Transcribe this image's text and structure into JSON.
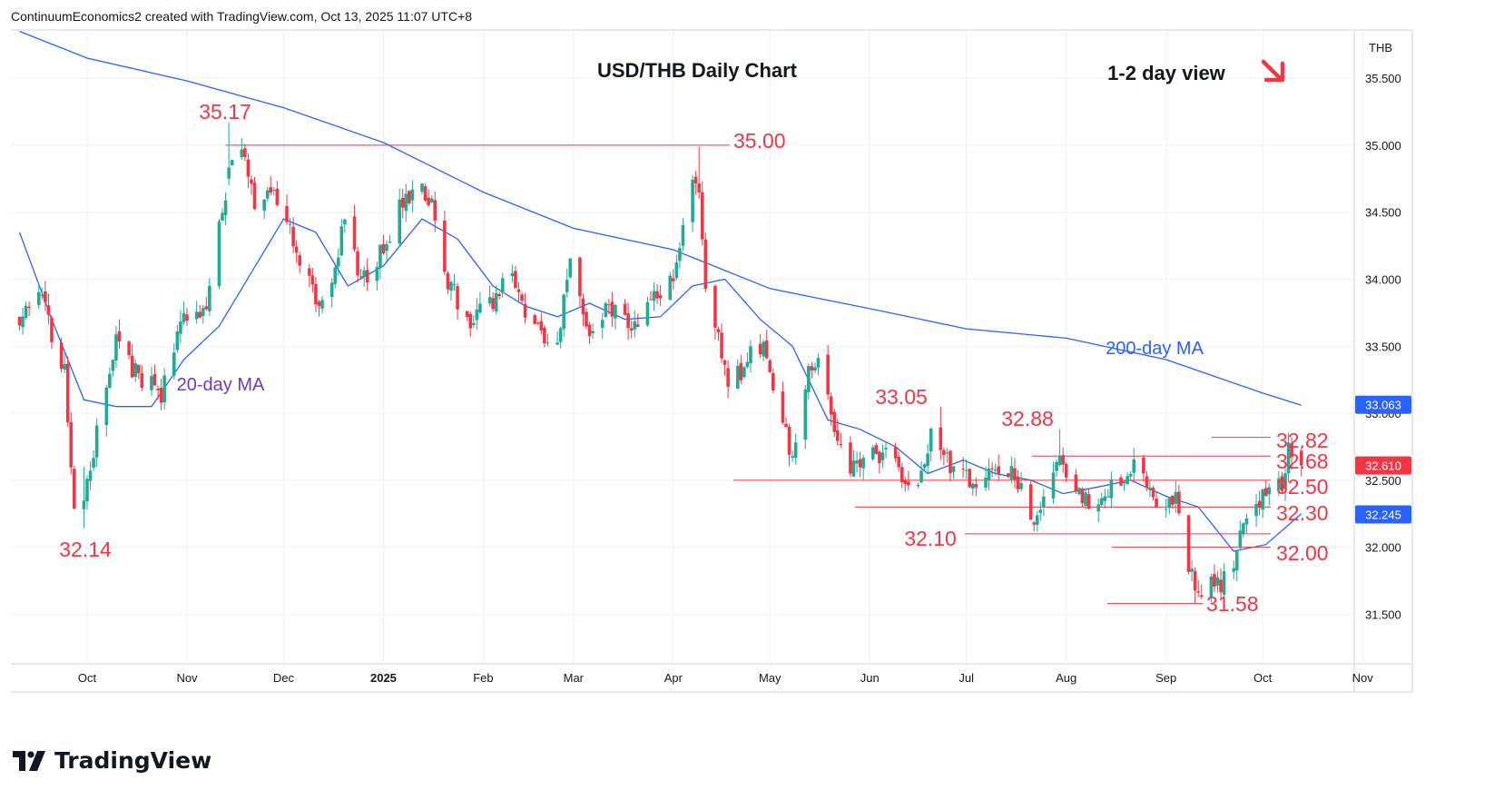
{
  "attribution": "ContinuumEconomics2 created with TradingView.com, Oct 13, 2025 11:07 UTC+8",
  "brand": {
    "name": "TradingView"
  },
  "colors": {
    "up": "#22ab94",
    "down": "#f23645",
    "ma200": "#2962ff",
    "ma20": "#2962ff",
    "level_line": "#f23645",
    "level_text": "#f23645",
    "ma20_label": "#6a3cc8",
    "ma200_label": "#2962ff",
    "axis_text": "#131722",
    "grid": "#eef0f3",
    "border": "#d1d4dc",
    "ma200_badge": "#2962ff",
    "price_badge": "#f23645",
    "ma20_badge": "#2962ff"
  },
  "chart_data": {
    "type": "candlestick",
    "title": "USD/THB Daily Chart",
    "view_label": "1-2 day view",
    "view_icon": "arrow-down-right-icon",
    "currency": "THB",
    "ylim": [
      31.13,
      35.86
    ],
    "y_ticks": [
      "35.500",
      "35.000",
      "34.500",
      "34.000",
      "33.500",
      "33.000",
      "32.500",
      "32.000",
      "31.500"
    ],
    "x_ticks": [
      {
        "label": "Oct",
        "date": "2024-10-01"
      },
      {
        "label": "Nov",
        "date": "2024-11-01"
      },
      {
        "label": "Dec",
        "date": "2024-12-01"
      },
      {
        "label": "2025",
        "date": "2025-01-01",
        "bold": true
      },
      {
        "label": "Feb",
        "date": "2025-02-01"
      },
      {
        "label": "Mar",
        "date": "2025-03-01"
      },
      {
        "label": "Apr",
        "date": "2025-04-01"
      },
      {
        "label": "May",
        "date": "2025-05-01"
      },
      {
        "label": "Jun",
        "date": "2025-06-01"
      },
      {
        "label": "Jul",
        "date": "2025-07-01"
      },
      {
        "label": "Aug",
        "date": "2025-08-01"
      },
      {
        "label": "Sep",
        "date": "2025-09-01"
      },
      {
        "label": "Oct",
        "date": "2025-10-01"
      },
      {
        "label": "Nov",
        "date": "2025-11-01"
      }
    ],
    "anchors": [
      [
        "2024-09-10",
        33.7
      ],
      [
        "2024-09-16",
        33.9
      ],
      [
        "2024-09-24",
        33.3
      ],
      [
        "2024-09-27",
        32.35
      ],
      [
        "2024-09-30",
        32.3
      ],
      [
        "2024-10-04",
        32.85
      ],
      [
        "2024-10-10",
        33.55
      ],
      [
        "2024-10-16",
        33.3
      ],
      [
        "2024-10-21",
        33.2
      ],
      [
        "2024-10-24",
        33.15
      ],
      [
        "2024-10-30",
        33.7
      ],
      [
        "2024-11-04",
        33.8
      ],
      [
        "2024-11-07",
        33.7
      ],
      [
        "2024-11-11",
        34.4
      ],
      [
        "2024-11-15",
        34.9
      ],
      [
        "2024-11-18",
        35.0
      ],
      [
        "2024-11-22",
        34.6
      ],
      [
        "2024-11-26",
        34.7
      ],
      [
        "2024-12-03",
        34.35
      ],
      [
        "2024-12-09",
        34.0
      ],
      [
        "2024-12-12",
        33.8
      ],
      [
        "2024-12-16",
        33.9
      ],
      [
        "2024-12-20",
        34.5
      ],
      [
        "2024-12-24",
        34.1
      ],
      [
        "2024-12-27",
        34.05
      ],
      [
        "2025-01-03",
        34.3
      ],
      [
        "2025-01-07",
        34.6
      ],
      [
        "2025-01-13",
        34.7
      ],
      [
        "2025-01-17",
        34.5
      ],
      [
        "2025-01-21",
        34.0
      ],
      [
        "2025-01-27",
        33.7
      ],
      [
        "2025-02-04",
        33.8
      ],
      [
        "2025-02-10",
        34.1
      ],
      [
        "2025-02-14",
        33.7
      ],
      [
        "2025-02-20",
        33.6
      ],
      [
        "2025-02-24",
        33.5
      ],
      [
        "2025-02-28",
        34.2
      ],
      [
        "2025-03-06",
        33.6
      ],
      [
        "2025-03-12",
        33.8
      ],
      [
        "2025-03-18",
        33.65
      ],
      [
        "2025-03-21",
        33.6
      ],
      [
        "2025-03-26",
        33.9
      ],
      [
        "2025-04-01",
        34.0
      ],
      [
        "2025-04-03",
        34.3
      ],
      [
        "2025-04-07",
        34.8
      ],
      [
        "2025-04-09",
        34.6
      ],
      [
        "2025-04-11",
        34.0
      ],
      [
        "2025-04-15",
        33.6
      ],
      [
        "2025-04-18",
        33.2
      ],
      [
        "2025-04-22",
        33.3
      ],
      [
        "2025-04-25",
        33.5
      ],
      [
        "2025-04-30",
        33.45
      ],
      [
        "2025-05-05",
        32.9
      ],
      [
        "2025-05-08",
        32.7
      ],
      [
        "2025-05-13",
        33.3
      ],
      [
        "2025-05-16",
        33.35
      ],
      [
        "2025-05-20",
        33.0
      ],
      [
        "2025-05-23",
        32.7
      ],
      [
        "2025-05-27",
        32.6
      ],
      [
        "2025-06-03",
        32.7
      ],
      [
        "2025-06-09",
        32.65
      ],
      [
        "2025-06-13",
        32.4
      ],
      [
        "2025-06-18",
        32.6
      ],
      [
        "2025-06-20",
        32.85
      ],
      [
        "2025-06-24",
        32.65
      ],
      [
        "2025-07-01",
        32.5
      ],
      [
        "2025-07-08",
        32.55
      ],
      [
        "2025-07-14",
        32.6
      ],
      [
        "2025-07-17",
        32.5
      ],
      [
        "2025-07-22",
        32.2
      ],
      [
        "2025-07-25",
        32.4
      ],
      [
        "2025-07-30",
        32.7
      ],
      [
        "2025-08-04",
        32.45
      ],
      [
        "2025-08-08",
        32.35
      ],
      [
        "2025-08-13",
        32.4
      ],
      [
        "2025-08-18",
        32.5
      ],
      [
        "2025-08-22",
        32.62
      ],
      [
        "2025-08-26",
        32.45
      ],
      [
        "2025-09-01",
        32.3
      ],
      [
        "2025-09-04",
        32.35
      ],
      [
        "2025-09-08",
        31.85
      ],
      [
        "2025-09-10",
        31.7
      ],
      [
        "2025-09-16",
        31.72
      ],
      [
        "2025-09-19",
        31.75
      ],
      [
        "2025-09-22",
        31.9
      ],
      [
        "2025-09-26",
        32.2
      ],
      [
        "2025-09-29",
        32.3
      ],
      [
        "2025-10-02",
        32.45
      ],
      [
        "2025-10-06",
        32.45
      ],
      [
        "2025-10-08",
        32.55
      ],
      [
        "2025-10-09",
        32.75
      ],
      [
        "2025-10-13",
        32.61
      ]
    ],
    "highlights": [
      {
        "date": "2024-09-30",
        "high": 32.6,
        "low": 32.14
      },
      {
        "date": "2024-11-14",
        "high": 35.17,
        "low": 34.7
      },
      {
        "date": "2025-04-09",
        "high": 34.99,
        "low": 34.6
      },
      {
        "date": "2025-06-23",
        "high": 33.05,
        "low": 32.65
      },
      {
        "date": "2025-07-30",
        "high": 32.88,
        "low": 32.6
      },
      {
        "date": "2025-09-10",
        "high": 31.85,
        "low": 31.58
      },
      {
        "date": "2025-10-10",
        "high": 32.82,
        "low": 32.58
      }
    ],
    "series": [
      {
        "name": "200-day MA",
        "x": [
          "2024-09-10",
          "2024-10-01",
          "2024-11-01",
          "2024-12-01",
          "2025-01-01",
          "2025-02-01",
          "2025-03-01",
          "2025-04-01",
          "2025-05-01",
          "2025-06-01",
          "2025-07-01",
          "2025-08-01",
          "2025-09-01",
          "2025-10-01",
          "2025-10-13"
        ],
        "values": [
          35.85,
          35.65,
          35.48,
          35.28,
          35.02,
          34.65,
          34.38,
          34.22,
          33.93,
          33.78,
          33.63,
          33.56,
          33.4,
          33.15,
          33.06
        ]
      },
      {
        "name": "20-day MA",
        "x": [
          "2024-09-10",
          "2024-09-20",
          "2024-09-30",
          "2024-10-10",
          "2024-10-21",
          "2024-10-31",
          "2024-11-11",
          "2024-11-21",
          "2024-12-01",
          "2024-12-11",
          "2024-12-21",
          "2025-01-01",
          "2025-01-13",
          "2025-01-24",
          "2025-02-04",
          "2025-02-14",
          "2025-02-24",
          "2025-03-06",
          "2025-03-17",
          "2025-03-28",
          "2025-04-07",
          "2025-04-17",
          "2025-04-28",
          "2025-05-08",
          "2025-05-19",
          "2025-05-29",
          "2025-06-09",
          "2025-06-19",
          "2025-06-30",
          "2025-07-10",
          "2025-07-21",
          "2025-07-31",
          "2025-08-11",
          "2025-08-21",
          "2025-09-01",
          "2025-09-11",
          "2025-09-22",
          "2025-10-02",
          "2025-10-13"
        ],
        "values": [
          34.35,
          33.7,
          33.1,
          33.05,
          33.05,
          33.4,
          33.65,
          34.05,
          34.45,
          34.35,
          33.95,
          34.1,
          34.45,
          34.3,
          33.95,
          33.8,
          33.72,
          33.82,
          33.7,
          33.72,
          33.95,
          34.0,
          33.7,
          33.5,
          32.95,
          32.88,
          32.75,
          32.55,
          32.65,
          32.55,
          32.5,
          32.4,
          32.45,
          32.5,
          32.38,
          32.3,
          31.97,
          32.02,
          32.25
        ]
      }
    ],
    "levels": [
      {
        "label": "35.17",
        "price": 35.17
      },
      {
        "label": "35.00",
        "price": 35.0,
        "line": true,
        "from": "2024-11-13",
        "to": "2025-05-01"
      },
      {
        "label": "33.05",
        "price": 33.05
      },
      {
        "label": "32.88",
        "price": 32.88
      },
      {
        "label": "32.82",
        "price": 32.82,
        "line": true,
        "from": "2025-10-01",
        "to": "2025-10-15"
      },
      {
        "label": "32.68",
        "price": 32.68,
        "line": true,
        "from": "2025-08-01",
        "to": "2025-10-15"
      },
      {
        "label": "32.50",
        "price": 32.5,
        "line": true,
        "from": "2025-05-01",
        "to": "2025-10-15"
      },
      {
        "label": "32.30",
        "price": 32.3,
        "line": true,
        "from": "2025-06-11",
        "to": "2025-10-15"
      },
      {
        "label": "32.10",
        "price": 32.1,
        "line": true,
        "from": "2025-07-18",
        "to": "2025-10-15"
      },
      {
        "label": "32.00",
        "price": 32.0,
        "line": true,
        "from": "2025-09-01",
        "to": "2025-10-15"
      },
      {
        "label": "32.14",
        "price": 32.14
      },
      {
        "label": "31.58",
        "price": 31.58,
        "line": true,
        "from": "2025-09-01",
        "to": "2025-10-02"
      }
    ],
    "annotations": [
      {
        "text": "20-day MA"
      },
      {
        "text": "200-day MA"
      }
    ],
    "price_badges": [
      {
        "label": "33.063",
        "price": 33.063,
        "kind": "ma200"
      },
      {
        "label": "32.610",
        "price": 32.61,
        "kind": "price"
      },
      {
        "label": "32.245",
        "price": 32.245,
        "kind": "ma20"
      }
    ],
    "grid": true
  }
}
